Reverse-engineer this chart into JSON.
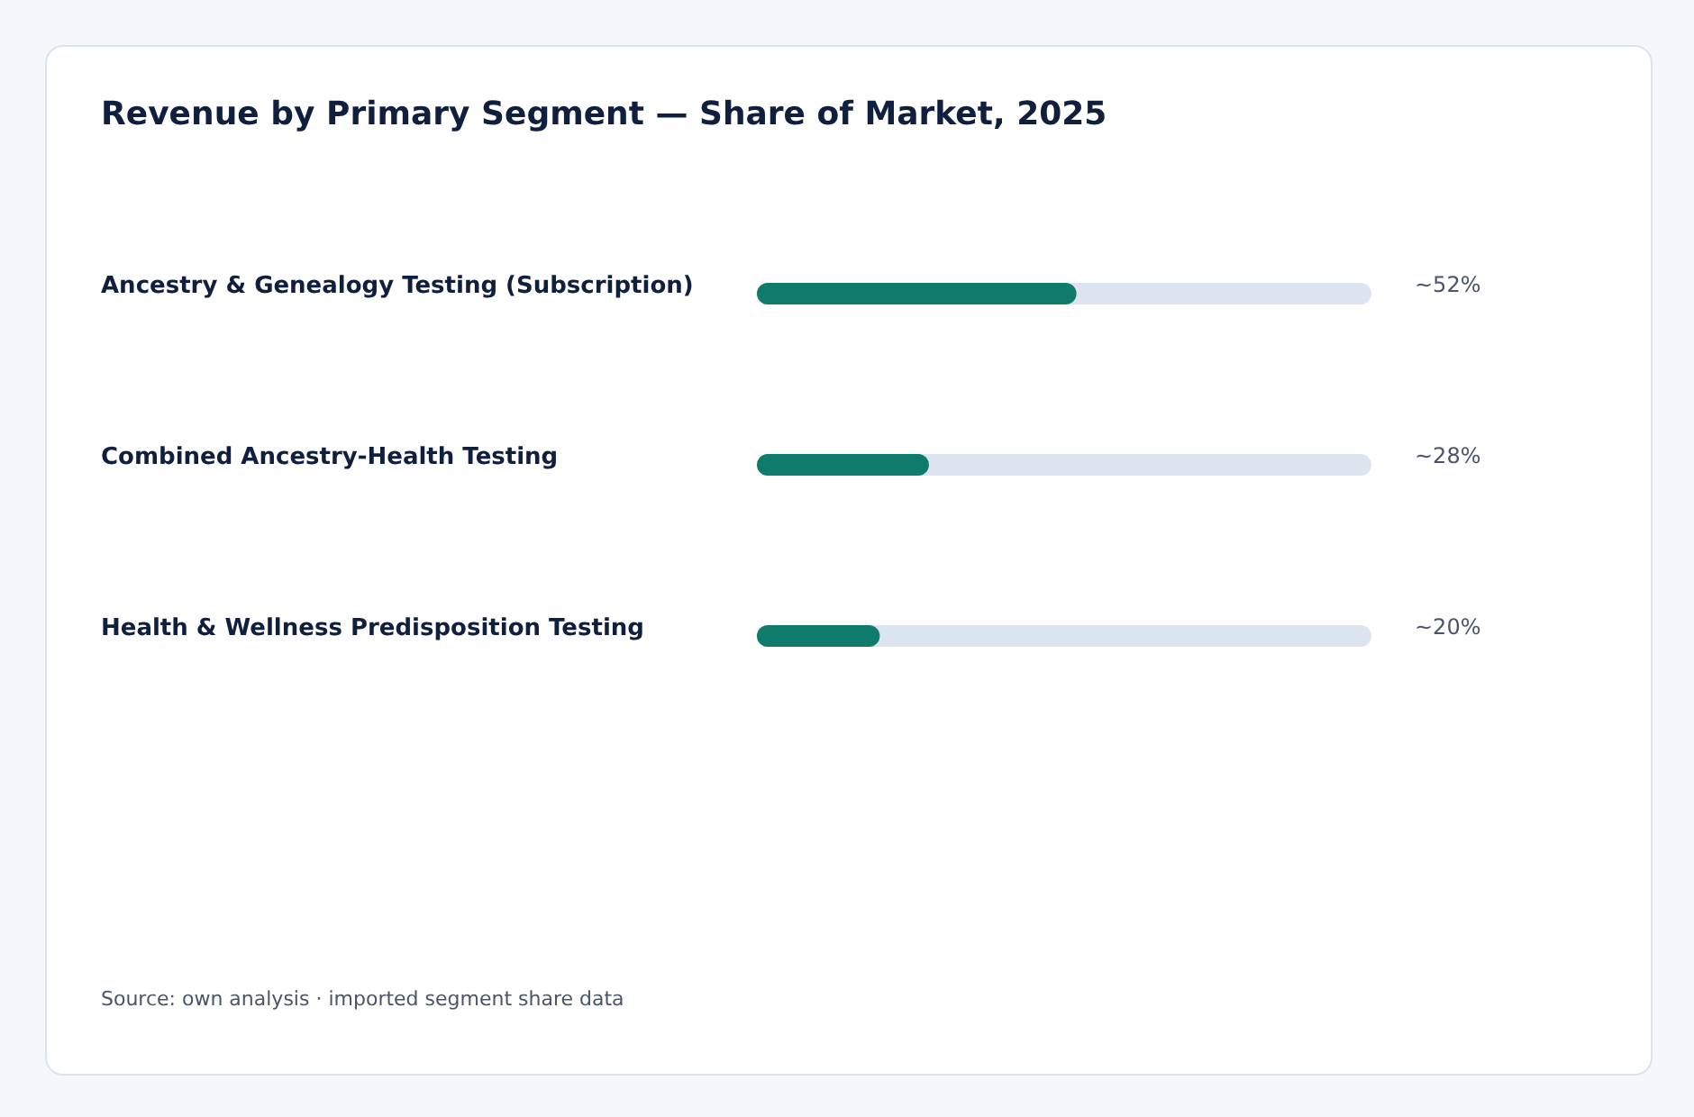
{
  "chart_data": {
    "type": "bar",
    "orientation": "horizontal",
    "title": "Revenue by Primary Segment — Share of Market, 2025",
    "categories": [
      "Ancestry & Genealogy Testing (Subscription)",
      "Combined Ancestry-Health Testing",
      "Health & Wellness Predisposition Testing"
    ],
    "values": [
      52,
      28,
      20
    ],
    "color": "#0f7b6c",
    "value_labels": [
      "~52%",
      "~28%",
      "~20%"
    ],
    "xlim": [
      0,
      100
    ],
    "tick_labels": "y",
    "annotations": [
      "Source: own analysis · imported segment share data"
    ]
  }
}
